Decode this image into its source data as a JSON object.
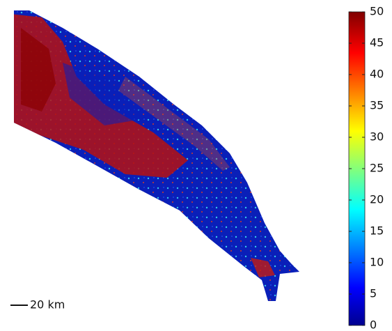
{
  "colorbar": {
    "lim": [
      0,
      50
    ],
    "ticks": [
      0,
      5,
      10,
      15,
      20,
      25,
      30,
      35,
      40,
      45,
      50
    ]
  },
  "scale_bar": {
    "label": "20 km"
  }
}
